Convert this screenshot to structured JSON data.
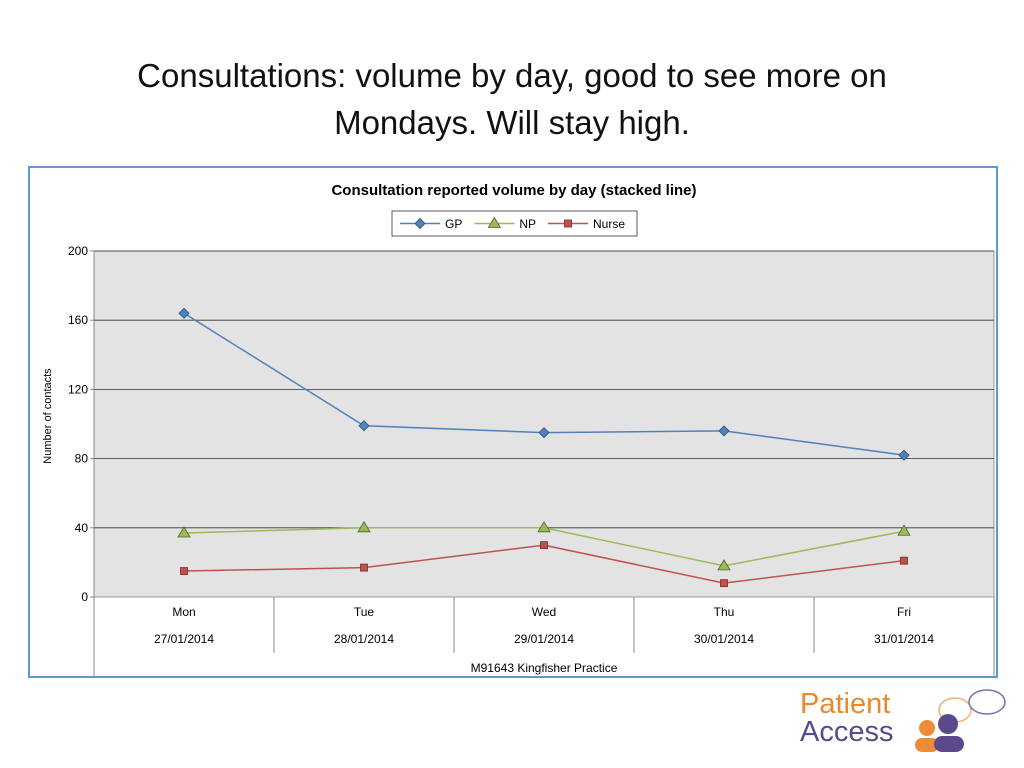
{
  "slide": {
    "title_line1": "Consultations:  volume by day, good to see more on",
    "title_line2": "Mondays.  Will stay high."
  },
  "logo": {
    "line1": "Patient",
    "line2": "Access"
  },
  "chart_data": {
    "type": "line",
    "title": "Consultation reported volume by day (stacked line)",
    "ylabel": "Number of contacts",
    "xlabel": "M91643 Kingfisher Practice",
    "ylim": [
      0,
      200
    ],
    "yticks": [
      0,
      40,
      80,
      120,
      160,
      200
    ],
    "categories": [
      "Mon",
      "Tue",
      "Wed",
      "Thu",
      "Fri"
    ],
    "dates": [
      "27/01/2014",
      "28/01/2014",
      "29/01/2014",
      "30/01/2014",
      "31/01/2014"
    ],
    "grid": true,
    "legend_position": "top-center",
    "plot_background": "#e3e3e3",
    "series": [
      {
        "name": "GP",
        "values": [
          164,
          99,
          95,
          96,
          82
        ],
        "color": "#4f81bd",
        "marker": "diamond"
      },
      {
        "name": "NP",
        "values": [
          37,
          40,
          40,
          18,
          38
        ],
        "color": "#9bbb59",
        "marker": "triangle"
      },
      {
        "name": "Nurse",
        "values": [
          15,
          17,
          30,
          8,
          21
        ],
        "color": "#c0504d",
        "marker": "square"
      }
    ]
  }
}
